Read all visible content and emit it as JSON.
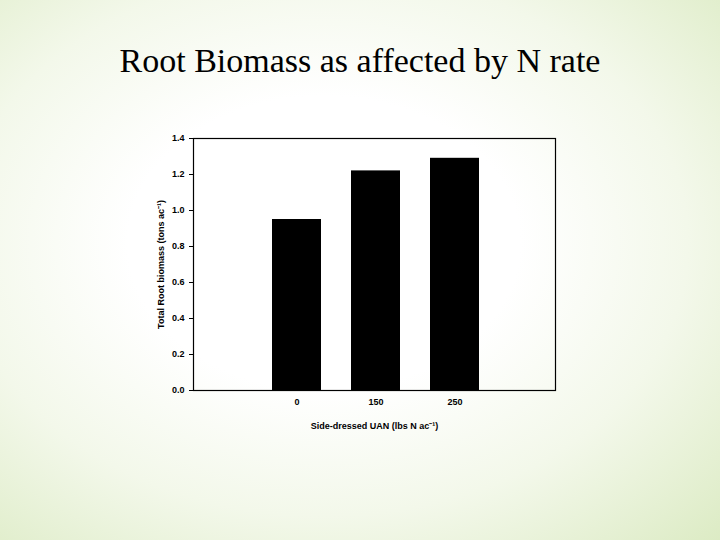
{
  "chart_data": {
    "type": "bar",
    "title": "Root Biomass as affected by N rate",
    "x_label": "Side-dressed UAN (lbs N ac⁻¹)",
    "y_label": "Total Root biomass (tons ac⁻¹)",
    "categories": [
      "0",
      "150",
      "250"
    ],
    "values": [
      0.95,
      1.22,
      1.29
    ],
    "color": "#000000",
    "ylim": [
      0,
      1.4
    ],
    "yticks": [
      {
        "value": 0,
        "label": "0.0"
      },
      0.2,
      0.4,
      0.6,
      0.8,
      {
        "value": 1,
        "label": "1.0"
      },
      1.2,
      1.4
    ],
    "grid": false
  }
}
